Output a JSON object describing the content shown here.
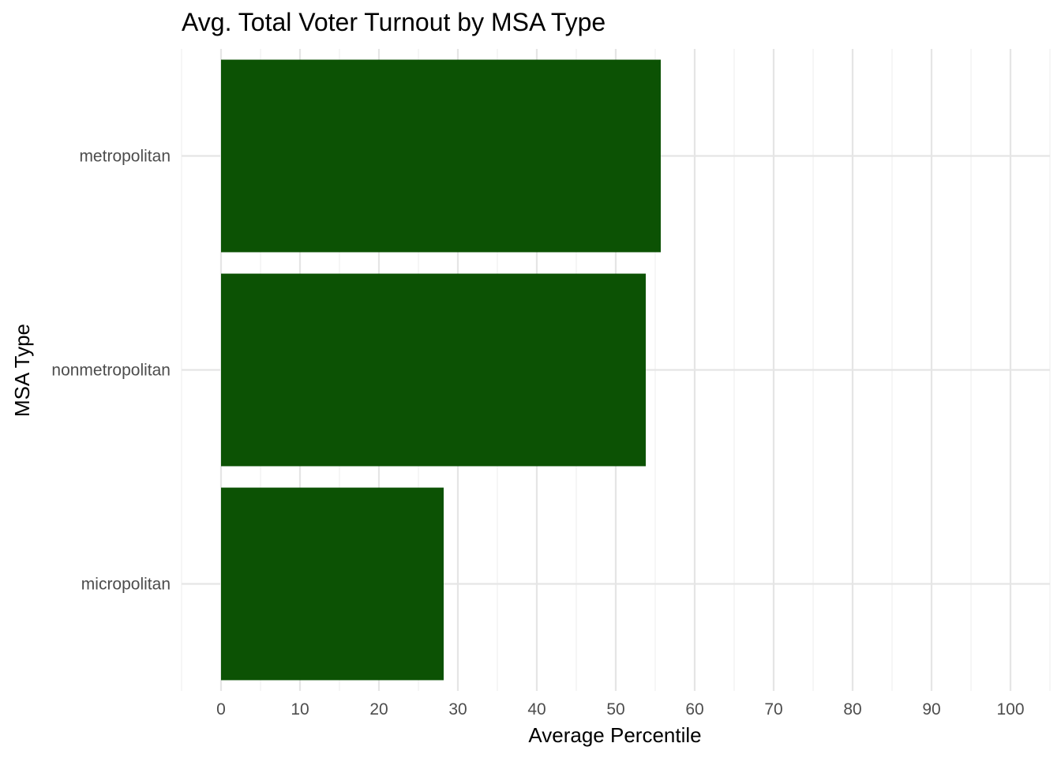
{
  "chart_data": {
    "type": "bar",
    "orientation": "horizontal",
    "title": "Avg. Total Voter Turnout by MSA Type",
    "xlabel": "Average Percentile",
    "ylabel": "MSA Type",
    "categories": [
      "metropolitan",
      "nonmetropolitan",
      "micropolitan"
    ],
    "values": [
      55.7,
      53.8,
      28.2
    ],
    "xlim": [
      -5,
      105
    ],
    "xticks": [
      0,
      10,
      20,
      30,
      40,
      50,
      60,
      70,
      80,
      90,
      100
    ],
    "xtick_labels": [
      "0",
      "10",
      "20",
      "30",
      "40",
      "50",
      "60",
      "70",
      "80",
      "90",
      "100"
    ],
    "grid": true,
    "legend": "none",
    "colors": {
      "bar": "#0c5204",
      "grid_major": "#e5e5e5",
      "grid_minor": "#f0f0f0",
      "tick_text": "#4d4d4d",
      "text": "#000000",
      "background": "#ffffff"
    }
  }
}
